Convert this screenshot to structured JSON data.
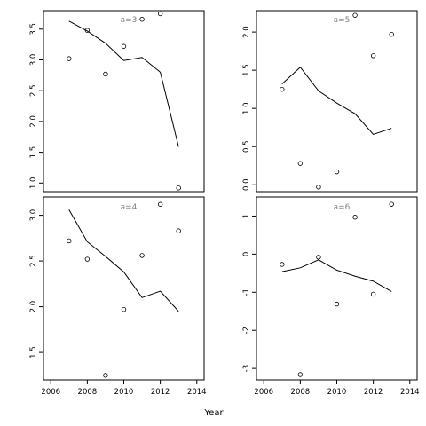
{
  "figure": {
    "xlabel": "Year"
  },
  "chart_data": [
    {
      "type": "scatter",
      "panel_label": "a=3",
      "x_ticks": [],
      "y_ticks": [
        1.0,
        1.5,
        2.0,
        2.5,
        3.0,
        3.5
      ],
      "y_tick_labels": [
        "1.0",
        "1.5",
        "2.0",
        "2.5",
        "3.0",
        "3.5"
      ],
      "xlim": [
        2005.6,
        2014.4
      ],
      "ylim": [
        0.86,
        3.8
      ],
      "series": [
        {
          "kind": "points",
          "x": [
            2007,
            2008,
            2009,
            2010,
            2011,
            2012,
            2013
          ],
          "y": [
            3.02,
            3.48,
            2.77,
            3.22,
            3.66,
            3.75,
            0.92
          ]
        },
        {
          "kind": "line",
          "x": [
            2007,
            2008,
            2009,
            2010,
            2011,
            2012,
            2013
          ],
          "y": [
            3.63,
            3.47,
            3.27,
            2.99,
            3.04,
            2.8,
            1.59
          ]
        }
      ]
    },
    {
      "type": "scatter",
      "panel_label": "a=5",
      "x_ticks": [],
      "y_ticks": [
        0.0,
        0.5,
        1.0,
        1.5,
        2.0
      ],
      "y_tick_labels": [
        "0.0",
        "0.5",
        "1.0",
        "1.5",
        "2.0"
      ],
      "xlim": [
        2005.6,
        2014.4
      ],
      "ylim": [
        -0.09,
        2.28
      ],
      "series": [
        {
          "kind": "points",
          "x": [
            2007,
            2008,
            2009,
            2010,
            2011,
            2012,
            2013
          ],
          "y": [
            1.25,
            0.28,
            -0.03,
            0.17,
            2.22,
            1.69,
            1.97
          ]
        },
        {
          "kind": "line",
          "x": [
            2007,
            2008,
            2009,
            2010,
            2011,
            2012,
            2013
          ],
          "y": [
            1.32,
            1.54,
            1.23,
            1.07,
            0.93,
            0.66,
            0.74
          ]
        }
      ]
    },
    {
      "type": "scatter",
      "panel_label": "a=4",
      "x_ticks": [
        2006,
        2008,
        2010,
        2012,
        2014
      ],
      "x_tick_labels": [
        "2006",
        "2008",
        "2010",
        "2012",
        "2014"
      ],
      "y_ticks": [
        1.5,
        2.0,
        2.5,
        3.0
      ],
      "y_tick_labels": [
        "1.5",
        "2.0",
        "2.5",
        "3.0"
      ],
      "xlim": [
        2005.6,
        2014.4
      ],
      "ylim": [
        1.2,
        3.2
      ],
      "series": [
        {
          "kind": "points",
          "x": [
            2007,
            2008,
            2009,
            2010,
            2011,
            2012,
            2013
          ],
          "y": [
            2.72,
            2.52,
            1.25,
            1.97,
            2.56,
            3.12,
            2.83
          ]
        },
        {
          "kind": "line",
          "x": [
            2007,
            2008,
            2009,
            2010,
            2011,
            2012,
            2013
          ],
          "y": [
            3.06,
            2.71,
            2.55,
            2.38,
            2.1,
            2.17,
            1.95
          ]
        }
      ]
    },
    {
      "type": "scatter",
      "panel_label": "a=6",
      "x_ticks": [
        2006,
        2008,
        2010,
        2012,
        2014
      ],
      "x_tick_labels": [
        "2006",
        "2008",
        "2010",
        "2012",
        "2014"
      ],
      "y_ticks": [
        -3,
        -2,
        -1,
        0,
        1
      ],
      "y_tick_labels": [
        "-3",
        "-2",
        "-1",
        "0",
        "1"
      ],
      "xlim": [
        2005.6,
        2014.4
      ],
      "ylim": [
        -3.3,
        1.5
      ],
      "series": [
        {
          "kind": "points",
          "x": [
            2007,
            2008,
            2009,
            2010,
            2011,
            2012,
            2013
          ],
          "y": [
            -0.27,
            -3.16,
            -0.08,
            -1.31,
            0.97,
            -1.05,
            1.31
          ]
        },
        {
          "kind": "line",
          "x": [
            2007,
            2008,
            2009,
            2010,
            2011,
            2012,
            2013
          ],
          "y": [
            -0.46,
            -0.36,
            -0.15,
            -0.42,
            -0.58,
            -0.71,
            -0.98
          ]
        }
      ]
    }
  ]
}
